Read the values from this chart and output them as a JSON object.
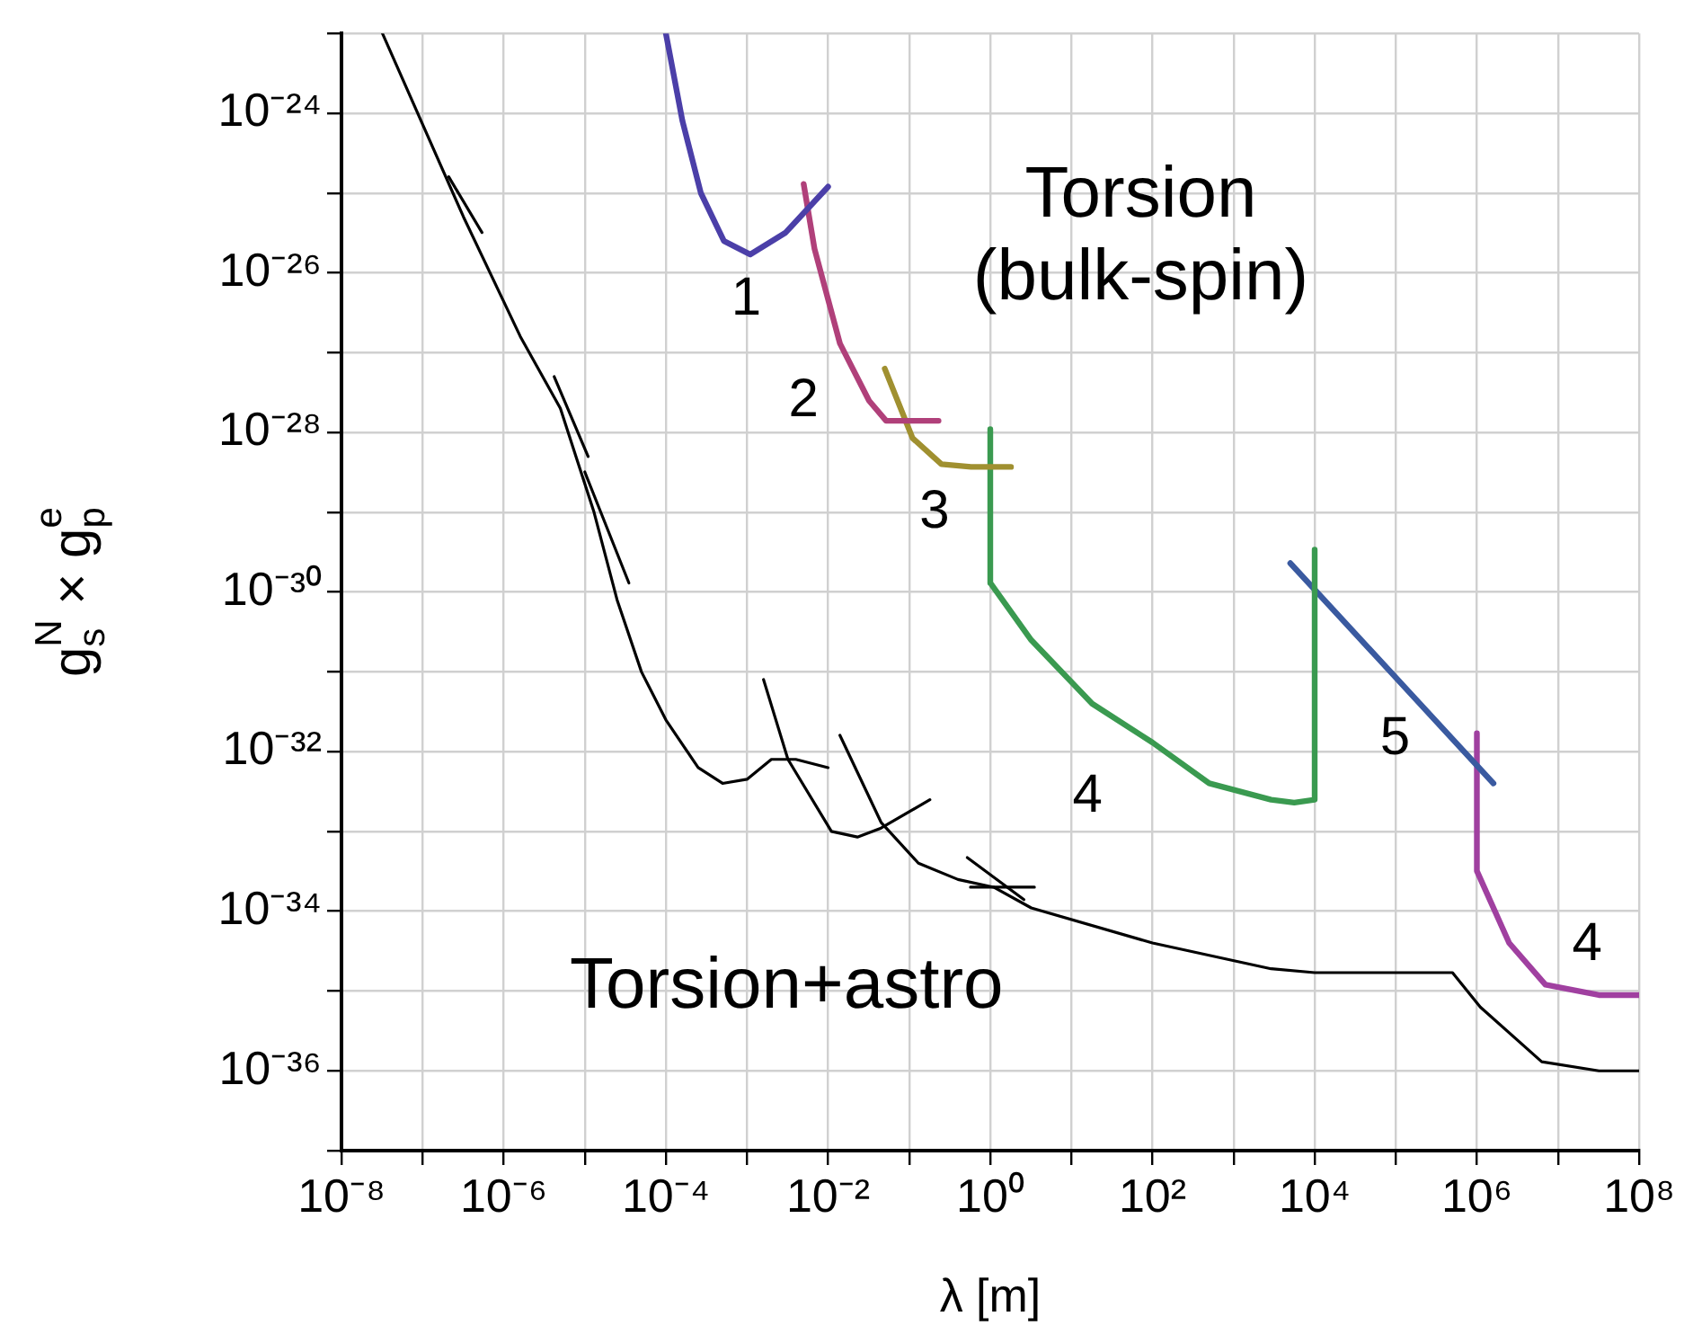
{
  "chart_data": {
    "type": "line",
    "xlabel": "λ [m]",
    "ylabel": "g$_{s}$$^{N}$ × g$_{p}$$^{e}$",
    "log": "xy",
    "grid": true,
    "legend": false,
    "marker": "none",
    "line_style": "solid",
    "xlim": [
      1e-08,
      100000000.0
    ],
    "ylim": [
      1e-37,
      1e-23
    ],
    "xticks": [
      {
        "value": 1e-08,
        "label": "10⁻⁸"
      },
      {
        "value": 1e-07,
        "label": null
      },
      {
        "value": 1e-06,
        "label": "10⁻⁶"
      },
      {
        "value": 1e-05,
        "label": null
      },
      {
        "value": 0.0001,
        "label": "10⁻⁴"
      },
      {
        "value": 0.001,
        "label": null
      },
      {
        "value": 0.01,
        "label": "10⁻²"
      },
      {
        "value": 0.1,
        "label": null
      },
      {
        "value": 1,
        "label": "10⁰"
      },
      {
        "value": 10,
        "label": null
      },
      {
        "value": 100,
        "label": "10²"
      },
      {
        "value": 1000,
        "label": null
      },
      {
        "value": 10000,
        "label": "10⁴"
      },
      {
        "value": 100000,
        "label": null
      },
      {
        "value": 1000000,
        "label": "10⁶"
      },
      {
        "value": 10000000,
        "label": null
      },
      {
        "value": 100000000,
        "label": "10⁸"
      }
    ],
    "yticks": [
      {
        "value": 1e-37,
        "label": null
      },
      {
        "value": 1e-36,
        "label": "10⁻³⁶"
      },
      {
        "value": 1e-35,
        "label": null
      },
      {
        "value": 1e-34,
        "label": "10⁻³⁴"
      },
      {
        "value": 1e-33,
        "label": null
      },
      {
        "value": 1e-32,
        "label": "10⁻³²"
      },
      {
        "value": 1e-31,
        "label": null
      },
      {
        "value": 1e-30,
        "label": "10⁻³⁰"
      },
      {
        "value": 1e-29,
        "label": null
      },
      {
        "value": 1e-28,
        "label": "10⁻²⁸"
      },
      {
        "value": 1e-27,
        "label": null
      },
      {
        "value": 1e-26,
        "label": "10⁻²⁶"
      },
      {
        "value": 1e-25,
        "label": null
      },
      {
        "value": 1e-24,
        "label": "10⁻²⁴"
      },
      {
        "value": 1e-23,
        "label": null
      }
    ],
    "series": [
      {
        "color": "#000000",
        "x": [
          3.2e-08,
          3.2e-07,
          1.6e-06,
          5e-06,
          1.3e-05,
          2.5e-05,
          5e-05,
          0.0001,
          0.00025,
          0.0005,
          0.001,
          0.002,
          0.004,
          0.01
        ],
        "values": [
          1e-23,
          5e-26,
          1.6e-27,
          2e-28,
          1e-29,
          8e-31,
          1e-31,
          2.5e-32,
          6.3e-33,
          4e-33,
          4.5e-33,
          8e-33,
          8e-33,
          6.3e-33
        ]
      },
      {
        "color": "#000000",
        "x": [
          2.1e-07,
          5.4e-07
        ],
        "values": [
          1.6e-25,
          3.2e-26
        ]
      },
      {
        "color": "#000000",
        "x": [
          4.2e-06,
          1.1e-05
        ],
        "values": [
          5e-28,
          5e-29
        ]
      },
      {
        "color": "#000000",
        "x": [
          1e-05,
          3.5e-05
        ],
        "values": [
          3.2e-29,
          1.3e-30
        ]
      },
      {
        "color": "#000000",
        "x": [
          0.0016,
          0.0032,
          0.011,
          0.023,
          0.045,
          0.18
        ],
        "values": [
          8e-32,
          8e-33,
          1e-33,
          8.5e-34,
          1.1e-33,
          2.5e-33
        ]
      },
      {
        "color": "#000000",
        "x": [
          0.014,
          0.045,
          0.13,
          0.4,
          1.1,
          3.2,
          100,
          2900,
          10000,
          500000,
          1100000,
          6300000,
          32000000,
          100000000
        ],
        "values": [
          1.6e-32,
          1.3e-33,
          4e-34,
          2.5e-34,
          2e-34,
          1.1e-34,
          4e-35,
          1.9e-35,
          1.7e-35,
          1.7e-35,
          6.3e-36,
          1.3e-36,
          1e-36,
          1e-36
        ]
      },
      {
        "color": "#000000",
        "x": [
          0.52,
          2.6
        ],
        "values": [
          4.7e-34,
          1.4e-34
        ]
      },
      {
        "color": "#000000",
        "x": [
          0.57,
          3.5
        ],
        "values": [
          2e-34,
          2e-34
        ]
      },
      {
        "color": "#4b3fa8",
        "x": [
          0.0001,
          0.00016,
          0.00027,
          0.00052,
          0.0011,
          0.003,
          0.01
        ],
        "values": [
          1e-23,
          8e-25,
          1e-25,
          2.5e-26,
          1.7e-26,
          3.2e-26,
          1.2e-25
        ]
      },
      {
        "color": "#b0407a",
        "x": [
          0.005,
          0.0068,
          0.014,
          0.032,
          0.052,
          0.23
        ],
        "values": [
          1.3e-25,
          2e-26,
          1.3e-27,
          2.5e-28,
          1.4e-28,
          1.4e-28
        ]
      },
      {
        "color": "#a09030",
        "x": [
          0.05,
          0.11,
          0.25,
          0.58,
          1.8
        ],
        "values": [
          6.3e-28,
          8.5e-29,
          4e-29,
          3.7e-29,
          3.7e-29
        ]
      },
      {
        "color": "#3a9a50",
        "x": [
          1,
          1,
          3.2,
          18,
          100,
          500,
          2900,
          5600,
          10000,
          10000
        ],
        "values": [
          1.1e-28,
          1.3e-30,
          2.5e-31,
          4e-32,
          1.3e-32,
          4e-33,
          2.5e-33,
          2.3e-33,
          2.5e-33,
          3.4e-30
        ]
      },
      {
        "color": "#3a5aa0",
        "x": [
          5000,
          1600000
        ],
        "values": [
          2.3e-30,
          4e-33
        ]
      },
      {
        "color": "#a040a0",
        "x": [
          1000000,
          1000000,
          2500000,
          7000000,
          32000000,
          100000000
        ],
        "values": [
          1.7e-32,
          3.2e-34,
          4e-35,
          1.2e-35,
          8.9e-36,
          8.9e-36
        ]
      }
    ],
    "annotations": [
      "1",
      "2",
      "3",
      "4",
      "5",
      "4",
      "Torsion\n(bulk-spin)",
      "Torsion+astro"
    ]
  }
}
